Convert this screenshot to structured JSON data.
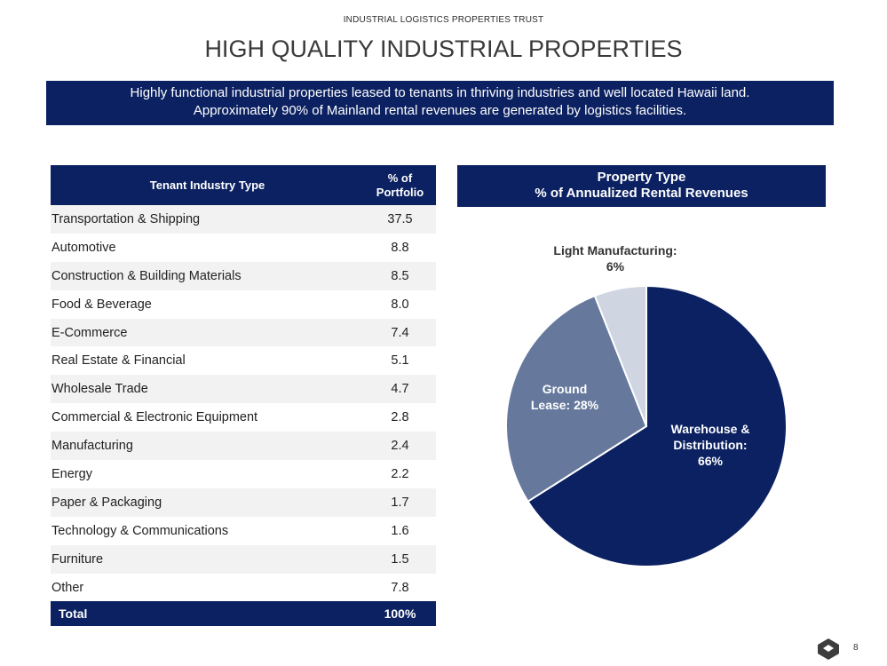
{
  "header": {
    "company": "INDUSTRIAL LOGISTICS PROPERTIES TRUST",
    "title": "HIGH QUALITY INDUSTRIAL PROPERTIES",
    "banner_line1": "Highly functional industrial properties leased to tenants in thriving industries and well located Hawaii land.",
    "banner_line2": "Approximately 90% of Mainland rental revenues are generated by logistics facilities."
  },
  "table": {
    "col1": "Tenant Industry Type",
    "col2_line1": "% of",
    "col2_line2": "Portfolio",
    "rows": [
      {
        "name": "Transportation & Shipping",
        "value": "37.5"
      },
      {
        "name": "Automotive",
        "value": "8.8"
      },
      {
        "name": "Construction & Building Materials",
        "value": "8.5"
      },
      {
        "name": "Food & Beverage",
        "value": "8.0"
      },
      {
        "name": "E-Commerce",
        "value": "7.4"
      },
      {
        "name": "Real Estate & Financial",
        "value": "5.1"
      },
      {
        "name": "Wholesale Trade",
        "value": "4.7"
      },
      {
        "name": "Commercial & Electronic Equipment",
        "value": "2.8"
      },
      {
        "name": "Manufacturing",
        "value": "2.4"
      },
      {
        "name": "Energy",
        "value": "2.2"
      },
      {
        "name": "Paper & Packaging",
        "value": "1.7"
      },
      {
        "name": "Technology & Communications",
        "value": "1.6"
      },
      {
        "name": "Furniture",
        "value": "1.5"
      },
      {
        "name": "Other",
        "value": "7.8"
      }
    ],
    "total_label": "Total",
    "total_value": "100%"
  },
  "chart_data": {
    "type": "pie",
    "title_line1": "Property Type",
    "title_line2": "% of Annualized Rental Revenues",
    "slices": [
      {
        "label_lines": [
          "Warehouse &",
          "Distribution:",
          "66%"
        ],
        "value": 66,
        "color": "#0b2161"
      },
      {
        "label_lines": [
          "Ground",
          "Lease: 28%"
        ],
        "value": 28,
        "color": "#66799d"
      },
      {
        "label_lines": [
          "Light Manufacturing:",
          "6%"
        ],
        "value": 6,
        "color": "#cfd5e1"
      }
    ]
  },
  "footer": {
    "page_number": "8"
  }
}
